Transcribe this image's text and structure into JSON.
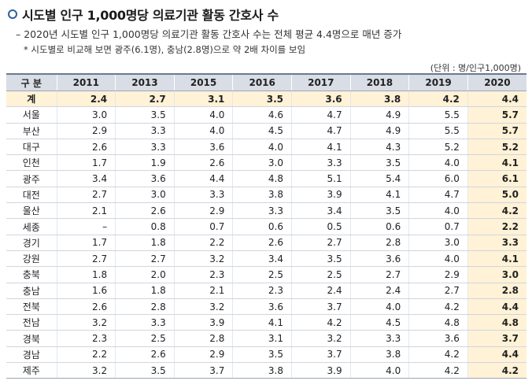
{
  "title": "시도별 인구 1,000명당 의료기관 활동 간호사 수",
  "subtitle": "– 2020년 시도별 인구 1,000명당 의료기관 활동 간호사 수는 전체 평균 4.4명으로 매년 증가",
  "note": "* 시도별로 비교해 보면 광주(6.1명), 충남(2.8명)으로 약 2배 차이를 보임",
  "unit": "(단위 : 명/인구1,000명)",
  "table": {
    "headers": [
      "구 분",
      "2011",
      "2013",
      "2015",
      "2016",
      "2017",
      "2018",
      "2019",
      "2020"
    ],
    "rows": [
      [
        "계",
        "2.4",
        "2.7",
        "3.1",
        "3.5",
        "3.6",
        "3.8",
        "4.2",
        "4.4"
      ],
      [
        "서울",
        "3.0",
        "3.5",
        "4.0",
        "4.6",
        "4.7",
        "4.9",
        "5.5",
        "5.7"
      ],
      [
        "부산",
        "2.9",
        "3.3",
        "4.0",
        "4.5",
        "4.7",
        "4.9",
        "5.5",
        "5.7"
      ],
      [
        "대구",
        "2.6",
        "3.3",
        "3.6",
        "4.0",
        "4.1",
        "4.3",
        "5.2",
        "5.2"
      ],
      [
        "인천",
        "1.7",
        "1.9",
        "2.6",
        "3.0",
        "3.3",
        "3.5",
        "4.0",
        "4.1"
      ],
      [
        "광주",
        "3.4",
        "3.6",
        "4.4",
        "4.8",
        "5.1",
        "5.4",
        "6.0",
        "6.1"
      ],
      [
        "대전",
        "2.7",
        "3.0",
        "3.3",
        "3.8",
        "3.9",
        "4.1",
        "4.7",
        "5.0"
      ],
      [
        "울산",
        "2.1",
        "2.6",
        "2.9",
        "3.3",
        "3.4",
        "3.5",
        "4.0",
        "4.2"
      ],
      [
        "세종",
        "–",
        "0.8",
        "0.7",
        "0.6",
        "0.5",
        "0.6",
        "0.7",
        "2.2"
      ],
      [
        "경기",
        "1.7",
        "1.8",
        "2.2",
        "2.6",
        "2.7",
        "2.8",
        "3.0",
        "3.3"
      ],
      [
        "강원",
        "2.7",
        "2.7",
        "3.2",
        "3.4",
        "3.5",
        "3.6",
        "4.0",
        "4.1"
      ],
      [
        "충북",
        "1.8",
        "2.0",
        "2.3",
        "2.5",
        "2.5",
        "2.7",
        "2.9",
        "3.0"
      ],
      [
        "충남",
        "1.6",
        "1.8",
        "2.1",
        "2.3",
        "2.4",
        "2.4",
        "2.7",
        "2.8"
      ],
      [
        "전북",
        "2.6",
        "2.8",
        "3.2",
        "3.6",
        "3.7",
        "4.0",
        "4.2",
        "4.4"
      ],
      [
        "전남",
        "3.2",
        "3.3",
        "3.9",
        "4.1",
        "4.2",
        "4.5",
        "4.8",
        "4.8"
      ],
      [
        "경북",
        "2.3",
        "2.5",
        "2.8",
        "3.1",
        "3.2",
        "3.3",
        "3.6",
        "3.7"
      ],
      [
        "경남",
        "2.2",
        "2.6",
        "2.9",
        "3.5",
        "3.7",
        "3.8",
        "4.2",
        "4.4"
      ],
      [
        "제주",
        "3.2",
        "3.5",
        "3.7",
        "3.8",
        "3.9",
        "4.0",
        "4.2",
        "4.2"
      ]
    ]
  },
  "colors": {
    "header_bg": "#d8dde6",
    "highlight_bg": "#fff2d6",
    "marker": "#2f5f9e"
  }
}
